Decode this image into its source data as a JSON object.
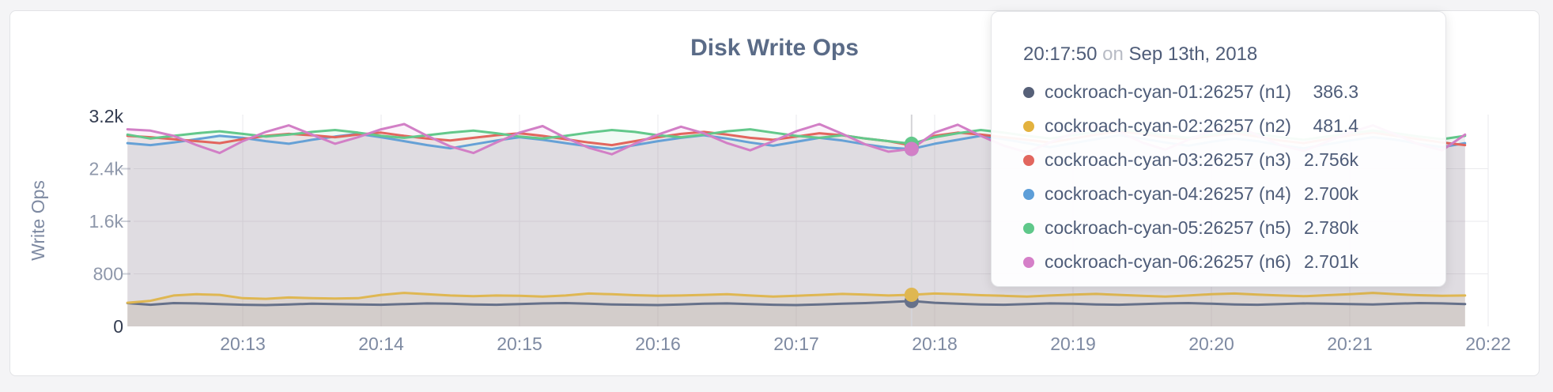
{
  "chart_data": {
    "type": "line",
    "title": "Disk Write Ops",
    "ylabel": "Write Ops",
    "xlabel": "",
    "grid": true,
    "ylim": [
      0,
      3200
    ],
    "x_start": "20:12:10",
    "x_step_seconds": 10,
    "x_start_seconds": 730,
    "x_ticks": [
      {
        "label": "20:13",
        "t": 780
      },
      {
        "label": "20:14",
        "t": 840
      },
      {
        "label": "20:15",
        "t": 900
      },
      {
        "label": "20:16",
        "t": 960
      },
      {
        "label": "20:17",
        "t": 1020
      },
      {
        "label": "20:18",
        "t": 1080
      },
      {
        "label": "20:19",
        "t": 1140
      },
      {
        "label": "20:20",
        "t": 1200
      },
      {
        "label": "20:21",
        "t": 1260
      },
      {
        "label": "20:22",
        "t": 1320
      }
    ],
    "y_ticks": [
      {
        "label": "0",
        "v": 0,
        "strong": true
      },
      {
        "label": "800",
        "v": 800,
        "strong": false
      },
      {
        "label": "1.6k",
        "v": 1600,
        "strong": false
      },
      {
        "label": "2.4k",
        "v": 2400,
        "strong": false
      },
      {
        "label": "3.2k",
        "v": 3200,
        "strong": true
      }
    ],
    "hover": {
      "index": 34,
      "time": "20:17:50"
    },
    "series": [
      {
        "id": "n1",
        "name": "cockroach-cyan-01:26257 (n1)",
        "color": "#66718a",
        "values": [
          355,
          330,
          355,
          350,
          340,
          330,
          325,
          335,
          345,
          340,
          335,
          330,
          340,
          350,
          345,
          335,
          330,
          340,
          350,
          355,
          345,
          335,
          330,
          325,
          335,
          345,
          350,
          340,
          330,
          325,
          335,
          345,
          355,
          370,
          386.3,
          360,
          345,
          335,
          330,
          340,
          350,
          345,
          335,
          330,
          340,
          350,
          355,
          345,
          335,
          330,
          340,
          350,
          345,
          340,
          335,
          345,
          355,
          350,
          340
        ]
      },
      {
        "id": "n2",
        "name": "cockroach-cyan-02:26257 (n2)",
        "color": "#dfb752",
        "values": [
          360,
          390,
          470,
          490,
          480,
          430,
          420,
          440,
          430,
          425,
          430,
          480,
          510,
          490,
          470,
          460,
          470,
          465,
          455,
          470,
          500,
          490,
          475,
          465,
          470,
          480,
          490,
          470,
          455,
          465,
          480,
          495,
          485,
          470,
          481.4,
          500,
          490,
          475,
          465,
          455,
          470,
          485,
          495,
          480,
          465,
          455,
          470,
          490,
          500,
          485,
          470,
          460,
          475,
          490,
          510,
          490,
          475,
          465,
          470
        ]
      },
      {
        "id": "n3",
        "name": "cockroach-cyan-03:26257 (n3)",
        "color": "#e2665e",
        "values": [
          2900,
          2880,
          2850,
          2820,
          2790,
          2850,
          2900,
          2930,
          2910,
          2880,
          2920,
          2950,
          2900,
          2860,
          2830,
          2870,
          2910,
          2940,
          2900,
          2850,
          2800,
          2760,
          2820,
          2880,
          2930,
          2960,
          2920,
          2870,
          2840,
          2890,
          2940,
          2910,
          2860,
          2820,
          2756,
          2900,
          2950,
          2920,
          2880,
          2840,
          2800,
          2860,
          2920,
          2970,
          2930,
          2880,
          2850,
          2900,
          2940,
          2890,
          2830,
          2790,
          2850,
          2910,
          2950,
          2900,
          2850,
          2800,
          2760
        ]
      },
      {
        "id": "n4",
        "name": "cockroach-cyan-04:26257 (n4)",
        "color": "#66a1d6",
        "values": [
          2790,
          2760,
          2800,
          2850,
          2900,
          2870,
          2820,
          2780,
          2840,
          2890,
          2930,
          2880,
          2820,
          2760,
          2710,
          2770,
          2830,
          2880,
          2840,
          2790,
          2740,
          2700,
          2760,
          2820,
          2870,
          2910,
          2860,
          2800,
          2750,
          2810,
          2870,
          2830,
          2770,
          2720,
          2700,
          2780,
          2840,
          2900,
          2850,
          2790,
          2730,
          2790,
          2850,
          2910,
          2860,
          2800,
          2750,
          2810,
          2860,
          2820,
          2760,
          2710,
          2770,
          2830,
          2880,
          2840,
          2780,
          2730,
          2790
        ]
      },
      {
        "id": "n5",
        "name": "cockroach-cyan-05:26257 (n5)",
        "color": "#63c88b",
        "values": [
          2920,
          2860,
          2900,
          2940,
          2970,
          2930,
          2890,
          2920,
          2960,
          2990,
          2950,
          2900,
          2870,
          2910,
          2950,
          2980,
          2940,
          2890,
          2860,
          2900,
          2950,
          2990,
          2960,
          2910,
          2880,
          2920,
          2970,
          3000,
          2950,
          2900,
          2870,
          2910,
          2860,
          2820,
          2780,
          2880,
          2940,
          2990,
          2950,
          2900,
          2860,
          2910,
          2960,
          3000,
          2960,
          2910,
          2870,
          2920,
          2970,
          2930,
          2880,
          2840,
          2890,
          2940,
          2980,
          2940,
          2890,
          2850,
          2900
        ]
      },
      {
        "id": "n6",
        "name": "cockroach-cyan-06:26257 (n6)",
        "color": "#d27fc6",
        "values": [
          3000,
          2980,
          2900,
          2760,
          2640,
          2820,
          2960,
          3060,
          2920,
          2780,
          2880,
          3000,
          3080,
          2900,
          2740,
          2640,
          2800,
          2950,
          3050,
          2870,
          2720,
          2620,
          2780,
          2920,
          3040,
          2940,
          2790,
          2680,
          2820,
          2970,
          3080,
          2930,
          2770,
          2660,
          2701,
          2950,
          3070,
          2900,
          2750,
          2650,
          2800,
          2940,
          3060,
          2960,
          2800,
          2690,
          2840,
          2980,
          3070,
          2910,
          2760,
          2670,
          2810,
          2950,
          3060,
          2920,
          2770,
          2680,
          2920
        ]
      }
    ]
  },
  "tooltip": {
    "header": {
      "time": "20:17:50",
      "on_word": "on",
      "date": "Sep 13th, 2018"
    },
    "rows": [
      {
        "label": "cockroach-cyan-01:26257 (n1)",
        "value": "386.3",
        "color": "#566078"
      },
      {
        "label": "cockroach-cyan-02:26257 (n2)",
        "value": "481.4",
        "color": "#e3b23e"
      },
      {
        "label": "cockroach-cyan-03:26257 (n3)",
        "value": "2.756k",
        "color": "#e2665e"
      },
      {
        "label": "cockroach-cyan-04:26257 (n4)",
        "value": "2.700k",
        "color": "#5d9ed8"
      },
      {
        "label": "cockroach-cyan-05:26257 (n5)",
        "value": "2.780k",
        "color": "#5fc88a"
      },
      {
        "label": "cockroach-cyan-06:26257 (n6)",
        "value": "2.701k",
        "color": "#d57fc8"
      }
    ]
  }
}
